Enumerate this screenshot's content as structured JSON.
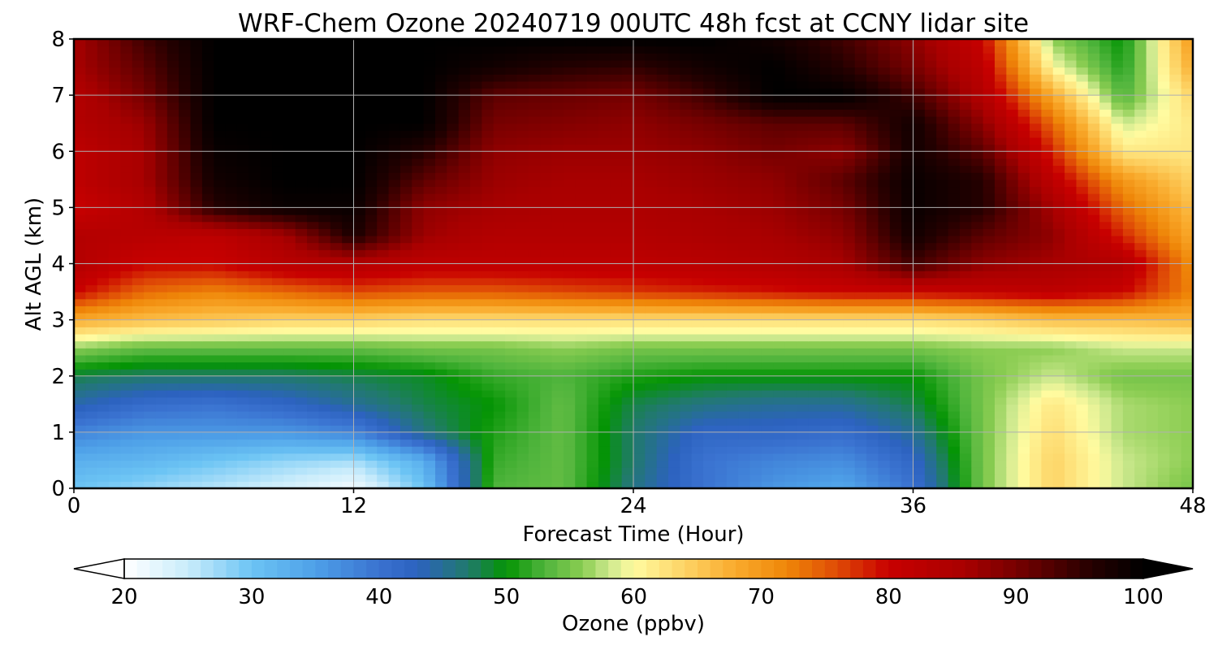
{
  "chart_data": {
    "type": "heatmap",
    "title": "WRF-Chem Ozone  20240719 00UTC 48h fcst at CCNY lidar site",
    "xlabel": "Forecast Time (Hour)",
    "ylabel": "Alt AGL (km)",
    "xlim": [
      0,
      48
    ],
    "ylim": [
      0,
      8
    ],
    "x_ticks": [
      "0",
      "12",
      "24",
      "36",
      "48"
    ],
    "y_ticks": [
      "0",
      "1",
      "2",
      "3",
      "4",
      "5",
      "6",
      "7",
      "8"
    ],
    "grid": true,
    "x": [
      0,
      3,
      6,
      9,
      12,
      15,
      18,
      21,
      24,
      27,
      30,
      33,
      36,
      39,
      42,
      45,
      48
    ],
    "y": [
      0,
      0.5,
      1,
      1.5,
      2,
      2.5,
      3,
      3.5,
      4,
      4.5,
      5,
      5.5,
      6,
      6.5,
      7,
      7.5,
      8
    ],
    "z": [
      [
        30,
        28,
        26,
        24,
        21,
        30,
        53,
        54,
        46,
        40,
        36,
        34,
        40,
        55,
        64,
        58,
        55
      ],
      [
        33,
        32,
        30,
        28,
        27,
        33,
        52,
        54,
        47,
        40,
        38,
        37,
        42,
        55,
        64,
        58,
        56
      ],
      [
        38,
        36,
        36,
        36,
        38,
        46,
        51,
        54,
        47,
        42,
        42,
        41,
        45,
        55,
        63,
        57,
        56
      ],
      [
        44,
        41,
        40,
        42,
        45,
        48,
        50,
        54,
        48,
        46,
        45,
        45,
        48,
        55,
        62,
        57,
        56
      ],
      [
        48,
        47,
        47,
        47,
        48,
        49,
        52,
        53,
        51,
        50,
        50,
        50,
        50,
        55,
        58,
        55,
        55
      ],
      [
        56,
        54,
        54,
        54,
        54,
        55,
        55,
        56,
        55,
        55,
        55,
        55,
        55,
        56,
        56,
        58,
        58
      ],
      [
        68,
        66,
        65,
        64,
        64,
        63,
        63,
        63,
        63,
        63,
        63,
        63,
        63,
        64,
        66,
        66,
        67
      ],
      [
        80,
        74,
        72,
        74,
        76,
        75,
        75,
        76,
        77,
        78,
        79,
        80,
        80,
        81,
        82,
        80,
        72
      ],
      [
        84,
        80,
        80,
        83,
        84,
        82,
        82,
        82,
        82,
        83,
        84,
        86,
        94,
        88,
        86,
        84,
        71
      ],
      [
        84,
        83,
        82,
        86,
        97,
        87,
        84,
        84,
        84,
        85,
        86,
        88,
        98,
        92,
        88,
        78,
        68
      ],
      [
        80,
        84,
        96,
        99,
        99,
        88,
        86,
        85,
        85,
        86,
        87,
        90,
        99,
        96,
        86,
        74,
        66
      ],
      [
        82,
        86,
        98,
        100,
        100,
        92,
        87,
        86,
        86,
        87,
        88,
        92,
        99,
        96,
        82,
        70,
        64
      ],
      [
        82,
        86,
        99,
        100,
        100,
        96,
        88,
        87,
        87,
        88,
        90,
        88,
        98,
        92,
        78,
        62,
        62
      ],
      [
        84,
        87,
        100,
        100,
        100,
        100,
        90,
        89,
        88,
        90,
        92,
        92,
        98,
        88,
        74,
        58,
        62
      ],
      [
        84,
        90,
        100,
        100,
        100,
        100,
        92,
        91,
        90,
        94,
        100,
        100,
        94,
        84,
        68,
        53,
        64
      ],
      [
        86,
        92,
        100,
        100,
        100,
        100,
        98,
        96,
        95,
        98,
        100,
        96,
        90,
        82,
        60,
        51,
        68
      ],
      [
        86,
        94,
        100,
        100,
        100,
        100,
        100,
        100,
        100,
        100,
        98,
        94,
        88,
        80,
        56,
        50,
        70
      ]
    ],
    "colorbar": {
      "label": "Ozone  (ppbv)",
      "min": 20,
      "max": 100,
      "ticks": [
        "20",
        "30",
        "40",
        "50",
        "60",
        "70",
        "80",
        "90",
        "100"
      ],
      "extend": "both"
    },
    "colorscale": [
      {
        "v": 20,
        "c": "#ffffff"
      },
      {
        "v": 25,
        "c": "#c9ecfb"
      },
      {
        "v": 30,
        "c": "#6cc4f4"
      },
      {
        "v": 35,
        "c": "#4ea0e8"
      },
      {
        "v": 40,
        "c": "#3a72d0"
      },
      {
        "v": 43,
        "c": "#2c62bf"
      },
      {
        "v": 47,
        "c": "#217a6c"
      },
      {
        "v": 50,
        "c": "#049404"
      },
      {
        "v": 53,
        "c": "#4fb43c"
      },
      {
        "v": 56,
        "c": "#8bcd52"
      },
      {
        "v": 58,
        "c": "#cbe88d"
      },
      {
        "v": 60,
        "c": "#fffba0"
      },
      {
        "v": 64,
        "c": "#fdd365"
      },
      {
        "v": 68,
        "c": "#f9aa2c"
      },
      {
        "v": 72,
        "c": "#ef8608"
      },
      {
        "v": 76,
        "c": "#df4a06"
      },
      {
        "v": 80,
        "c": "#c80000"
      },
      {
        "v": 86,
        "c": "#a80000"
      },
      {
        "v": 91,
        "c": "#6a0000"
      },
      {
        "v": 96,
        "c": "#240000"
      },
      {
        "v": 100,
        "c": "#000000"
      }
    ]
  }
}
